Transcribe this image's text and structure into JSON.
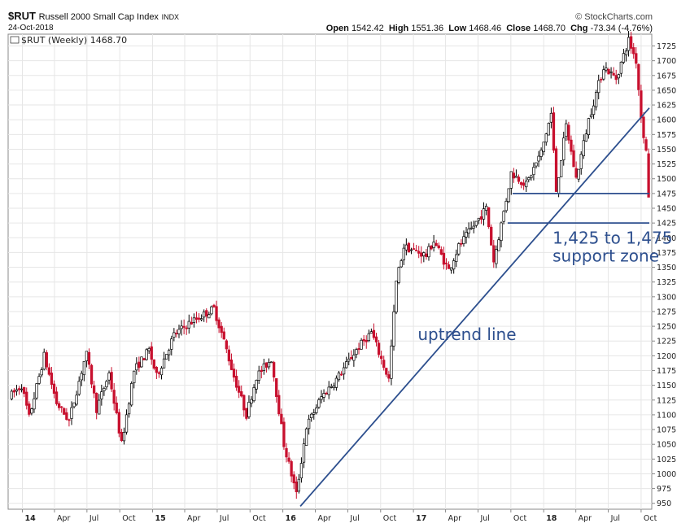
{
  "header": {
    "symbol": "$RUT",
    "name": "Russell 2000 Small Cap Index",
    "exchange": "INDX",
    "date": "24-Oct-2018",
    "source": "© StockCharts.com",
    "open_label": "Open",
    "open": "1542.42",
    "high_label": "High",
    "high": "1551.36",
    "low_label": "Low",
    "low": "1468.46",
    "close_label": "Close",
    "close": "1468.70",
    "chg_label": "Chg",
    "chg": "-73.34 (-4.76%)",
    "legend": "$RUT (Weekly) 1468.70"
  },
  "colors": {
    "up": "#000000",
    "down": "#c8102e",
    "line": "#2d4f8e",
    "grid": "#e6e6e6"
  },
  "chart_data": {
    "type": "candlestick",
    "interval": "weekly",
    "ylim": [
      940,
      1745
    ],
    "yticks": [
      950,
      975,
      1000,
      1025,
      1050,
      1075,
      1100,
      1125,
      1150,
      1175,
      1200,
      1225,
      1250,
      1275,
      1300,
      1325,
      1350,
      1375,
      1400,
      1425,
      1450,
      1475,
      1500,
      1525,
      1550,
      1575,
      1600,
      1625,
      1650,
      1675,
      1700,
      1725
    ],
    "xticks": [
      {
        "label": "14",
        "date": "2014-01-01",
        "bold": true
      },
      {
        "label": "Apr",
        "date": "2014-04-01"
      },
      {
        "label": "Jul",
        "date": "2014-07-01"
      },
      {
        "label": "Oct",
        "date": "2014-10-01"
      },
      {
        "label": "15",
        "date": "2015-01-01",
        "bold": true
      },
      {
        "label": "Apr",
        "date": "2015-04-01"
      },
      {
        "label": "Jul",
        "date": "2015-07-01"
      },
      {
        "label": "Oct",
        "date": "2015-10-01"
      },
      {
        "label": "16",
        "date": "2016-01-01",
        "bold": true
      },
      {
        "label": "Apr",
        "date": "2016-04-01"
      },
      {
        "label": "Jul",
        "date": "2016-07-01"
      },
      {
        "label": "Oct",
        "date": "2016-10-01"
      },
      {
        "label": "17",
        "date": "2017-01-01",
        "bold": true
      },
      {
        "label": "Apr",
        "date": "2017-04-01"
      },
      {
        "label": "Jul",
        "date": "2017-07-01"
      },
      {
        "label": "Oct",
        "date": "2017-10-01"
      },
      {
        "label": "18",
        "date": "2018-01-01",
        "bold": true
      },
      {
        "label": "Apr",
        "date": "2018-04-01"
      },
      {
        "label": "Jul",
        "date": "2018-07-01"
      },
      {
        "label": "Oct",
        "date": "2018-10-01"
      }
    ],
    "start_date": "2013-11-29",
    "end_date": "2018-10-24",
    "close_path": [
      [
        "2013-11-29",
        1130
      ],
      [
        "2014-01-03",
        1150
      ],
      [
        "2014-01-24",
        1095
      ],
      [
        "2014-03-07",
        1200
      ],
      [
        "2014-04-11",
        1120
      ],
      [
        "2014-05-16",
        1090
      ],
      [
        "2014-07-03",
        1205
      ],
      [
        "2014-08-01",
        1110
      ],
      [
        "2014-09-05",
        1170
      ],
      [
        "2014-10-10",
        1050
      ],
      [
        "2014-11-14",
        1175
      ],
      [
        "2014-12-26",
        1210
      ],
      [
        "2015-01-16",
        1165
      ],
      [
        "2015-03-06",
        1235
      ],
      [
        "2015-04-17",
        1255
      ],
      [
        "2015-06-26",
        1280
      ],
      [
        "2015-07-24",
        1225
      ],
      [
        "2015-08-21",
        1165
      ],
      [
        "2015-09-25",
        1100
      ],
      [
        "2015-10-23",
        1165
      ],
      [
        "2015-12-04",
        1195
      ],
      [
        "2016-01-08",
        1050
      ],
      [
        "2016-02-12",
        965
      ],
      [
        "2016-03-11",
        1080
      ],
      [
        "2016-04-22",
        1130
      ],
      [
        "2016-06-03",
        1160
      ],
      [
        "2016-07-29",
        1210
      ],
      [
        "2016-09-09",
        1240
      ],
      [
        "2016-10-28",
        1160
      ],
      [
        "2016-11-18",
        1325
      ],
      [
        "2016-12-09",
        1385
      ],
      [
        "2017-02-10",
        1370
      ],
      [
        "2017-03-03",
        1395
      ],
      [
        "2017-04-14",
        1345
      ],
      [
        "2017-05-12",
        1385
      ],
      [
        "2017-07-28",
        1450
      ],
      [
        "2017-08-18",
        1360
      ],
      [
        "2017-09-22",
        1465
      ],
      [
        "2017-10-06",
        1510
      ],
      [
        "2017-11-17",
        1490
      ],
      [
        "2017-12-29",
        1545
      ],
      [
        "2018-01-26",
        1610
      ],
      [
        "2018-02-09",
        1480
      ],
      [
        "2018-03-09",
        1590
      ],
      [
        "2018-04-06",
        1500
      ],
      [
        "2018-05-11",
        1600
      ],
      [
        "2018-06-22",
        1690
      ],
      [
        "2018-07-27",
        1670
      ],
      [
        "2018-08-31",
        1735
      ],
      [
        "2018-09-21",
        1700
      ],
      [
        "2018-10-05",
        1605
      ],
      [
        "2018-10-19",
        1545
      ],
      [
        "2018-10-24",
        1468.7
      ]
    ],
    "last_candle": {
      "open": 1542.42,
      "high": 1551.36,
      "low": 1468.46,
      "close": 1468.7
    },
    "trendlines": [
      {
        "name": "uptrend line",
        "from": [
          "2016-02-19",
          945
        ],
        "to": [
          "2018-10-24",
          1620
        ]
      },
      {
        "name": "support-1475",
        "from": [
          "2017-10-06",
          1475
        ],
        "to": [
          "2018-10-24",
          1475
        ]
      },
      {
        "name": "support-1425",
        "from": [
          "2017-09-22",
          1425
        ],
        "to": [
          "2018-10-24",
          1425
        ]
      }
    ],
    "annotations": [
      {
        "text": "uptrend line",
        "date": "2017-01-13",
        "y": 1227
      },
      {
        "text": "1,425 to 1,475",
        "date": "2018-01-26",
        "y": 1390
      },
      {
        "text": "support zone",
        "date": "2018-01-26",
        "y": 1360
      }
    ]
  }
}
